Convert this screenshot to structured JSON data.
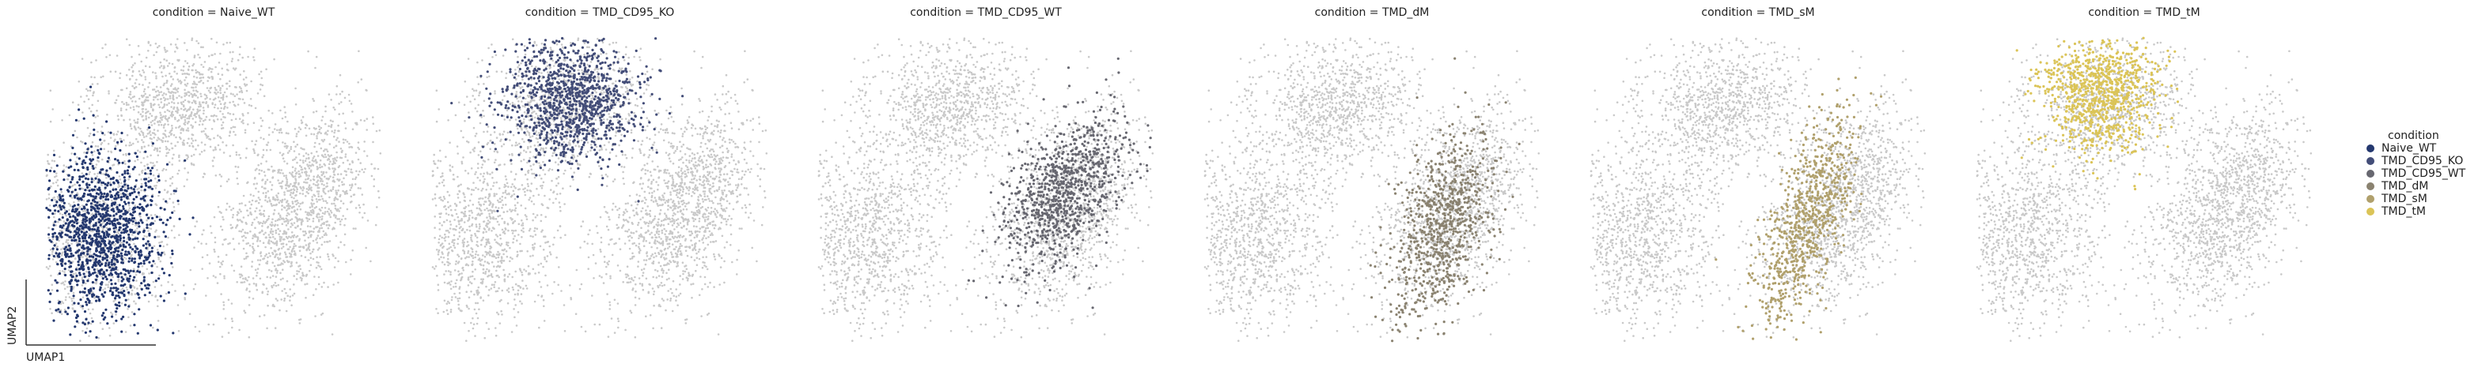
{
  "chart_data": {
    "type": "scatter",
    "xlabel": "UMAP1",
    "ylabel": "UMAP2",
    "legend_title": "condition",
    "legend_placement": "right",
    "background_color": "#c9c9c9",
    "panels": [
      {
        "title": "condition = Naive_WT",
        "highlight": "Naive_WT",
        "color": "#24386f"
      },
      {
        "title": "condition = TMD_CD95_KO",
        "highlight": "TMD_CD95_KO",
        "color": "#434d78"
      },
      {
        "title": "condition = TMD_CD95_WT",
        "highlight": "TMD_CD95_WT",
        "color": "#676770"
      },
      {
        "title": "condition = TMD_dM",
        "highlight": "TMD_dM",
        "color": "#8a8270"
      },
      {
        "title": "condition = TMD_sM",
        "highlight": "TMD_sM",
        "color": "#b0a06c"
      },
      {
        "title": "condition = TMD_tM",
        "highlight": "TMD_tM",
        "color": "#dbc457"
      }
    ],
    "legend": [
      {
        "label": "Naive_WT",
        "color": "#24386f"
      },
      {
        "label": "TMD_CD95_KO",
        "color": "#434d78"
      },
      {
        "label": "TMD_CD95_WT",
        "color": "#676770"
      },
      {
        "label": "TMD_dM",
        "color": "#8a8270"
      },
      {
        "label": "TMD_sM",
        "color": "#b0a06c"
      },
      {
        "label": "TMD_tM",
        "color": "#dbc457"
      }
    ]
  }
}
